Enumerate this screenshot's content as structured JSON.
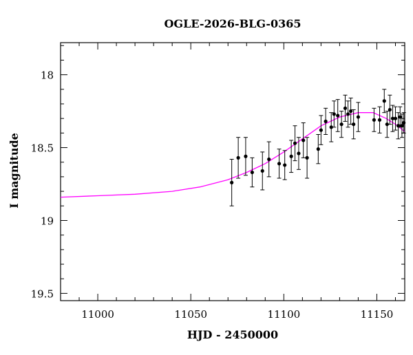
{
  "chart_data": {
    "type": "scatter",
    "title": "OGLE-2026-BLG-0365",
    "xlabel": "HJD - 2450000",
    "ylabel": "I magnitude",
    "xlim": [
      10980,
      11165
    ],
    "ylim": [
      19.55,
      17.78
    ],
    "y_inverted": true,
    "x_ticks": {
      "major": [
        11000,
        11050,
        11100,
        11150
      ],
      "labels": [
        "11000",
        "11050",
        "11100",
        "11150"
      ],
      "minor_step": 10
    },
    "y_ticks": {
      "major": [
        18,
        18.5,
        19,
        19.5
      ],
      "labels": [
        "18",
        "18.5",
        "19",
        "19.5"
      ],
      "minor_step": 0.1
    },
    "colors": {
      "points": "#000000",
      "model": "#ff00ff",
      "axes": "#000000"
    },
    "series": [
      {
        "kind": "points_with_errorbars",
        "points": [
          {
            "x": 11072.0,
            "y": 18.74,
            "err": 0.16
          },
          {
            "x": 11075.5,
            "y": 18.57,
            "err": 0.14
          },
          {
            "x": 11079.5,
            "y": 18.56,
            "err": 0.13
          },
          {
            "x": 11083.0,
            "y": 18.67,
            "err": 0.1
          },
          {
            "x": 11088.5,
            "y": 18.66,
            "err": 0.13
          },
          {
            "x": 11092.0,
            "y": 18.58,
            "err": 0.12
          },
          {
            "x": 11097.5,
            "y": 18.61,
            "err": 0.1
          },
          {
            "x": 11100.5,
            "y": 18.62,
            "err": 0.1
          },
          {
            "x": 11104.0,
            "y": 18.56,
            "err": 0.11
          },
          {
            "x": 11106.0,
            "y": 18.47,
            "err": 0.12
          },
          {
            "x": 11108.0,
            "y": 18.54,
            "err": 0.11
          },
          {
            "x": 11110.5,
            "y": 18.45,
            "err": 0.12
          },
          {
            "x": 11112.5,
            "y": 18.57,
            "err": 0.14
          },
          {
            "x": 11118.5,
            "y": 18.51,
            "err": 0.1
          },
          {
            "x": 11120.0,
            "y": 18.38,
            "err": 0.1
          },
          {
            "x": 11122.5,
            "y": 18.32,
            "err": 0.09
          },
          {
            "x": 11125.5,
            "y": 18.36,
            "err": 0.1
          },
          {
            "x": 11127.0,
            "y": 18.27,
            "err": 0.09
          },
          {
            "x": 11129.0,
            "y": 18.28,
            "err": 0.11
          },
          {
            "x": 11131.0,
            "y": 18.34,
            "err": 0.09
          },
          {
            "x": 11133.0,
            "y": 18.23,
            "err": 0.09
          },
          {
            "x": 11134.5,
            "y": 18.27,
            "err": 0.09
          },
          {
            "x": 11136.0,
            "y": 18.25,
            "err": 0.09
          },
          {
            "x": 11137.5,
            "y": 18.34,
            "err": 0.1
          },
          {
            "x": 11140.0,
            "y": 18.29,
            "err": 0.1
          },
          {
            "x": 11148.5,
            "y": 18.31,
            "err": 0.08
          },
          {
            "x": 11151.5,
            "y": 18.31,
            "err": 0.09
          },
          {
            "x": 11154.0,
            "y": 18.18,
            "err": 0.08
          },
          {
            "x": 11155.5,
            "y": 18.34,
            "err": 0.09
          },
          {
            "x": 11157.0,
            "y": 18.24,
            "err": 0.1
          },
          {
            "x": 11158.5,
            "y": 18.3,
            "err": 0.09
          },
          {
            "x": 11160.0,
            "y": 18.3,
            "err": 0.08
          },
          {
            "x": 11161.5,
            "y": 18.35,
            "err": 0.09
          },
          {
            "x": 11162.5,
            "y": 18.29,
            "err": 0.07
          },
          {
            "x": 11163.5,
            "y": 18.35,
            "err": 0.08
          },
          {
            "x": 11164.5,
            "y": 18.33,
            "err": 0.07
          }
        ]
      },
      {
        "kind": "model_curve",
        "points": [
          {
            "x": 10980,
            "y": 18.84
          },
          {
            "x": 11000,
            "y": 18.83
          },
          {
            "x": 11020,
            "y": 18.82
          },
          {
            "x": 11040,
            "y": 18.8
          },
          {
            "x": 11055,
            "y": 18.77
          },
          {
            "x": 11070,
            "y": 18.72
          },
          {
            "x": 11080,
            "y": 18.67
          },
          {
            "x": 11090,
            "y": 18.61
          },
          {
            "x": 11100,
            "y": 18.53
          },
          {
            "x": 11110,
            "y": 18.44
          },
          {
            "x": 11120,
            "y": 18.35
          },
          {
            "x": 11130,
            "y": 18.29
          },
          {
            "x": 11140,
            "y": 18.26
          },
          {
            "x": 11148,
            "y": 18.26
          },
          {
            "x": 11155,
            "y": 18.3
          },
          {
            "x": 11160,
            "y": 18.34
          },
          {
            "x": 11165,
            "y": 18.39
          }
        ]
      }
    ]
  }
}
